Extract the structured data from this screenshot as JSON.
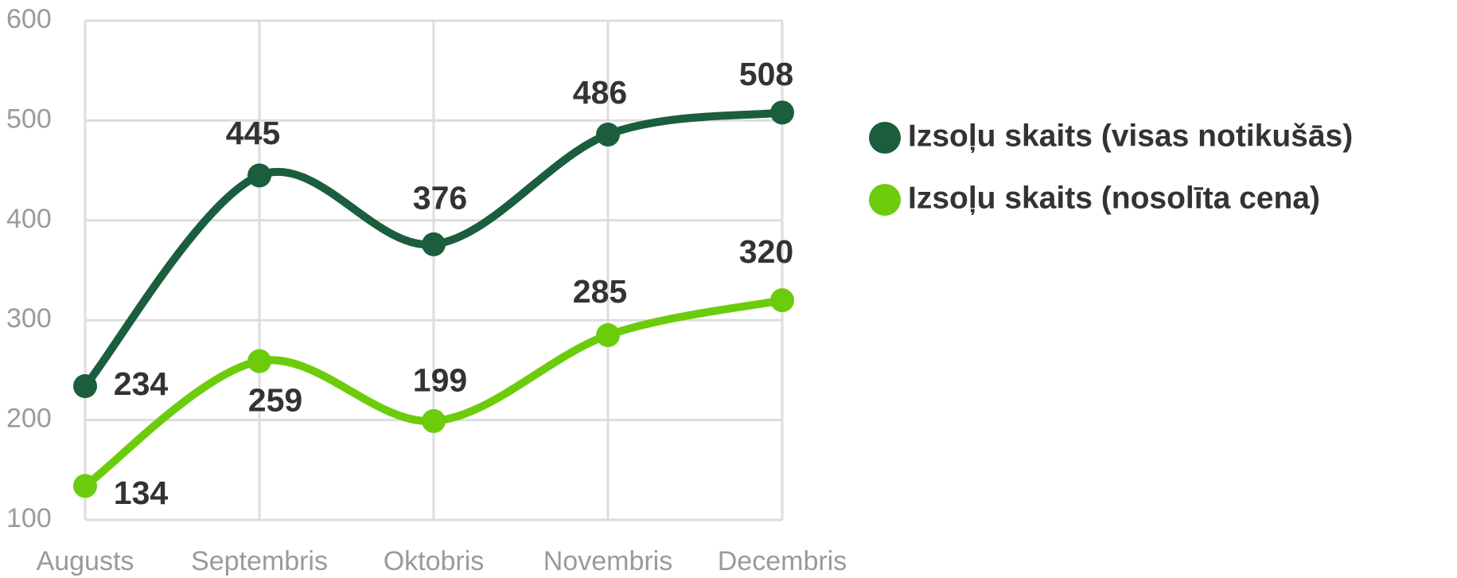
{
  "chart_data": {
    "type": "line",
    "categories": [
      "Augusts",
      "Septembris",
      "Oktobris",
      "Novembris",
      "Decembris"
    ],
    "series": [
      {
        "name": "Izsoļu skaits (visas notikušās)",
        "color": "#1a5e3e",
        "values": [
          234,
          445,
          376,
          486,
          508
        ]
      },
      {
        "name": "Izsoļu skaits (nosolīta cena)",
        "color": "#6ccc0c",
        "values": [
          134,
          259,
          199,
          285,
          320
        ]
      }
    ],
    "ylim": [
      100,
      600
    ],
    "yticks": [
      100,
      200,
      300,
      400,
      500,
      600
    ],
    "grid": true,
    "legend": "right"
  }
}
